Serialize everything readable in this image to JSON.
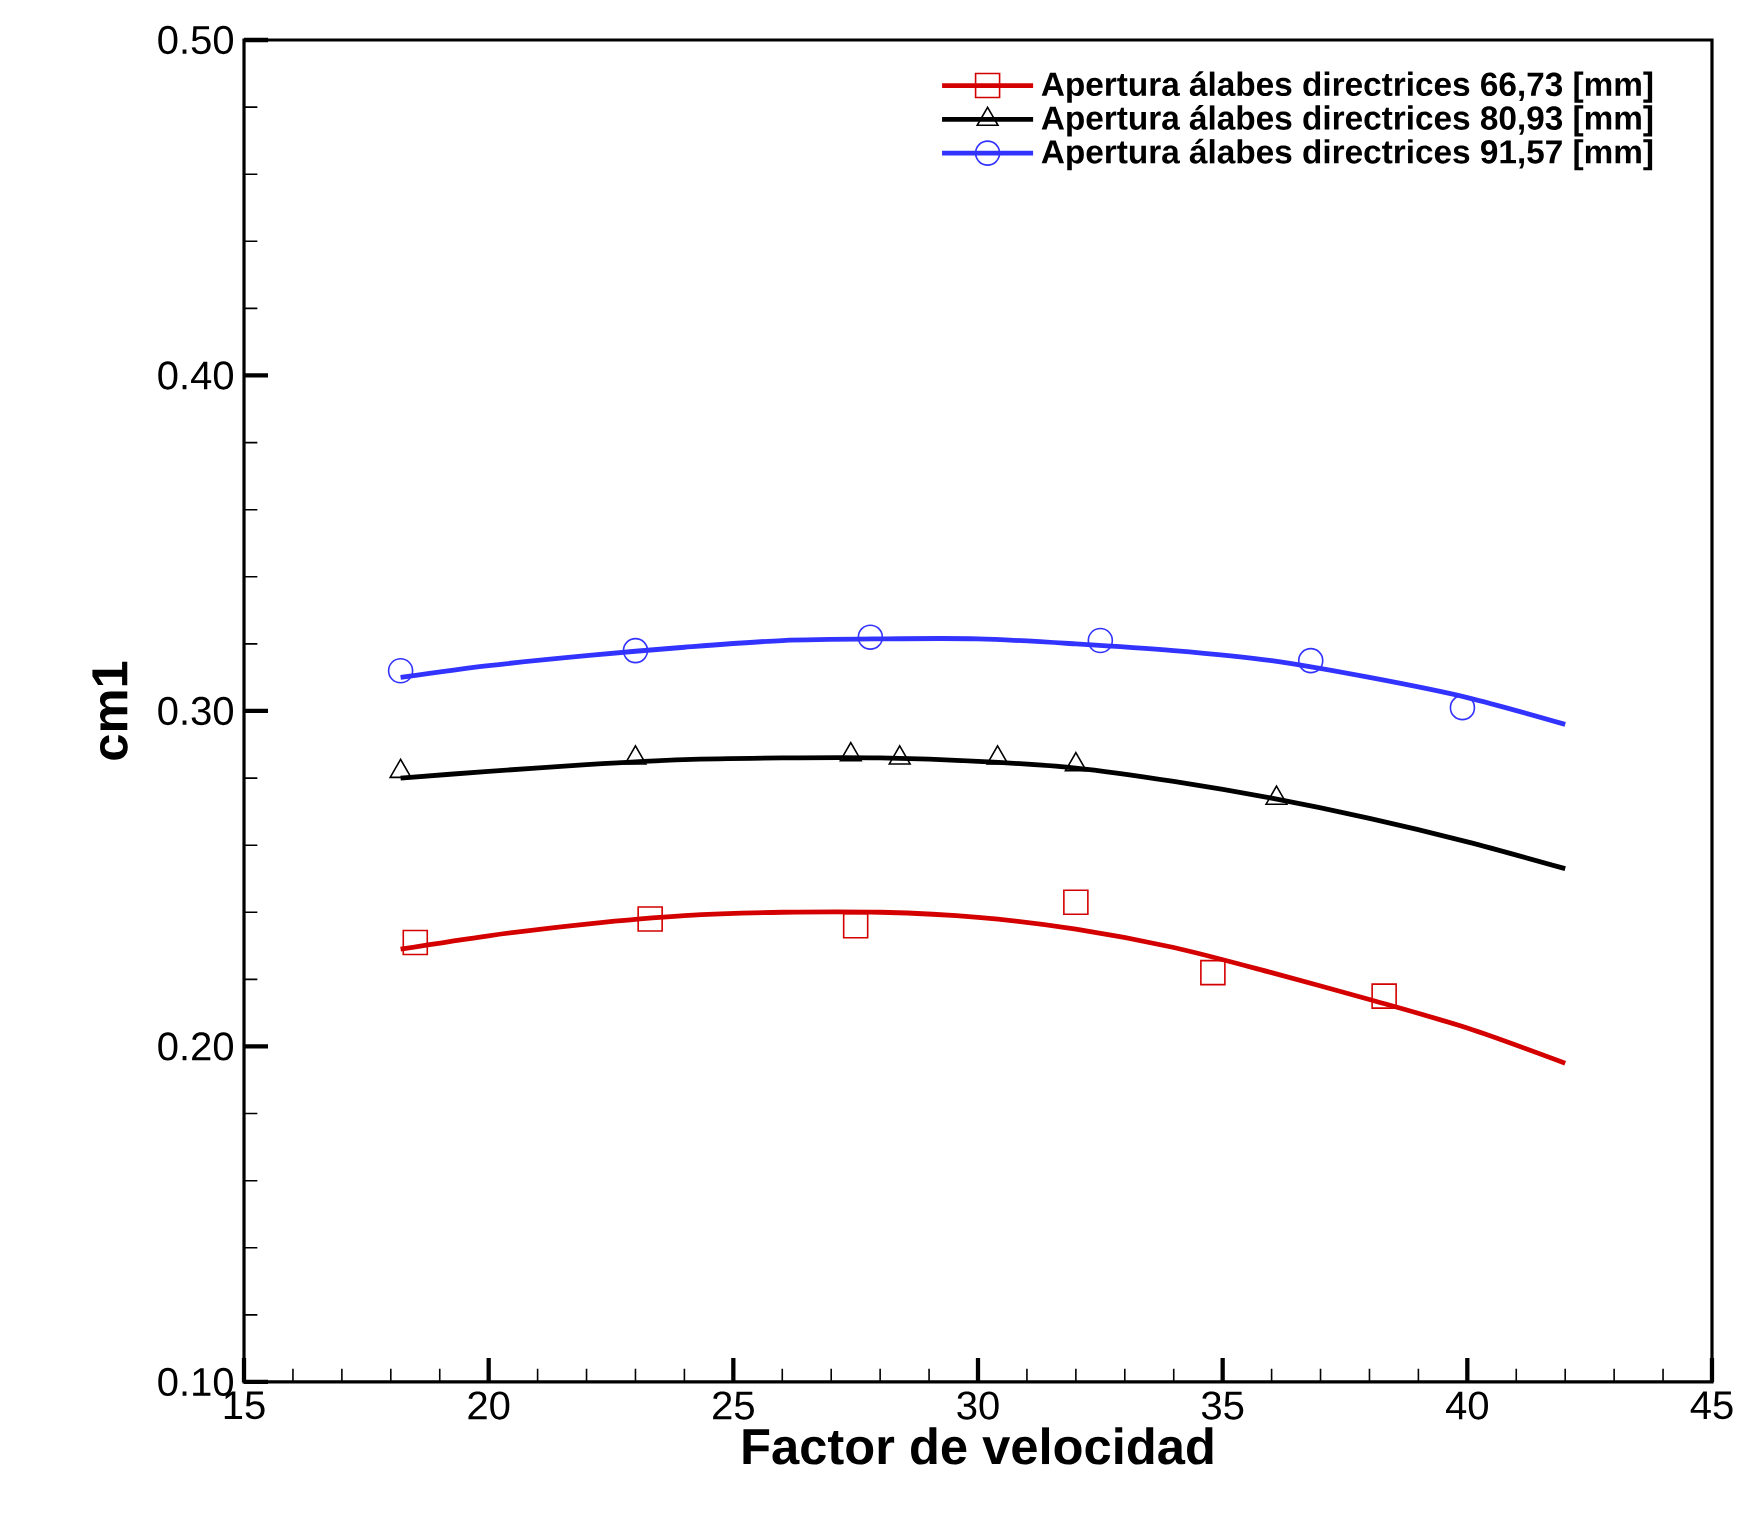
{
  "chart_data": {
    "type": "scatter",
    "xlabel": "Factor de velocidad",
    "ylabel": "cm1",
    "xlim": [
      15,
      45
    ],
    "xticks": [
      15,
      20,
      25,
      30,
      35,
      40,
      45
    ],
    "ylim": [
      0.1,
      0.5
    ],
    "yticks": [
      {
        "value": 0.1,
        "label": "0.10"
      },
      {
        "value": 0.2,
        "label": "0.20"
      },
      {
        "value": 0.3,
        "label": "0.30"
      },
      {
        "value": 0.4,
        "label": "0.40"
      },
      {
        "value": 0.5,
        "label": "0.50"
      }
    ],
    "legend": "top right",
    "grid": false,
    "series": [
      {
        "name": "Apertura álabes directrices 66,73 [mm]",
        "color": "#d40000",
        "marker": "square",
        "x": [
          18.5,
          23.3,
          27.5,
          32,
          34.8,
          38.3
        ],
        "values": [
          0.231,
          0.238,
          0.236,
          0.243,
          0.222,
          0.215
        ]
      },
      {
        "name": "Apertura álabes directrices 80,93 [mm]",
        "color": "#000000",
        "marker": "triangle",
        "x": [
          18.2,
          23,
          27.4,
          28.4,
          30.4,
          32,
          36.1
        ],
        "values": [
          0.282,
          0.286,
          0.287,
          0.286,
          0.286,
          0.284,
          0.274
        ]
      },
      {
        "name": "Apertura álabes directrices 91,57 [mm]",
        "color": "#3333ff",
        "marker": "circle",
        "x": [
          18.2,
          23,
          27.8,
          32.5,
          36.8,
          39.9
        ],
        "values": [
          0.312,
          0.318,
          0.322,
          0.321,
          0.315,
          0.301
        ]
      },
      {
        "type": "line",
        "color": "#d40000",
        "marker": "none",
        "x": [
          18.2,
          20,
          22,
          24,
          26,
          28,
          30,
          32,
          34,
          36,
          38,
          40,
          42
        ],
        "values": [
          0.229,
          0.233,
          0.2365,
          0.239,
          0.24,
          0.24,
          0.2385,
          0.235,
          0.2295,
          0.222,
          0.214,
          0.2055,
          0.195
        ]
      },
      {
        "type": "line",
        "color": "#000000",
        "marker": "none",
        "x": [
          18.2,
          20,
          22,
          24,
          26,
          28,
          30,
          32,
          34,
          36,
          38,
          40,
          42
        ],
        "values": [
          0.28,
          0.282,
          0.284,
          0.2855,
          0.286,
          0.286,
          0.285,
          0.283,
          0.279,
          0.274,
          0.268,
          0.261,
          0.253
        ]
      },
      {
        "type": "line",
        "color": "#3333ff",
        "marker": "none",
        "x": [
          18.2,
          20,
          22,
          24,
          26,
          28,
          30,
          32,
          34,
          36,
          38,
          40,
          42
        ],
        "values": [
          0.31,
          0.3135,
          0.3165,
          0.319,
          0.321,
          0.3215,
          0.3215,
          0.32,
          0.318,
          0.315,
          0.31,
          0.304,
          0.296
        ]
      }
    ]
  }
}
